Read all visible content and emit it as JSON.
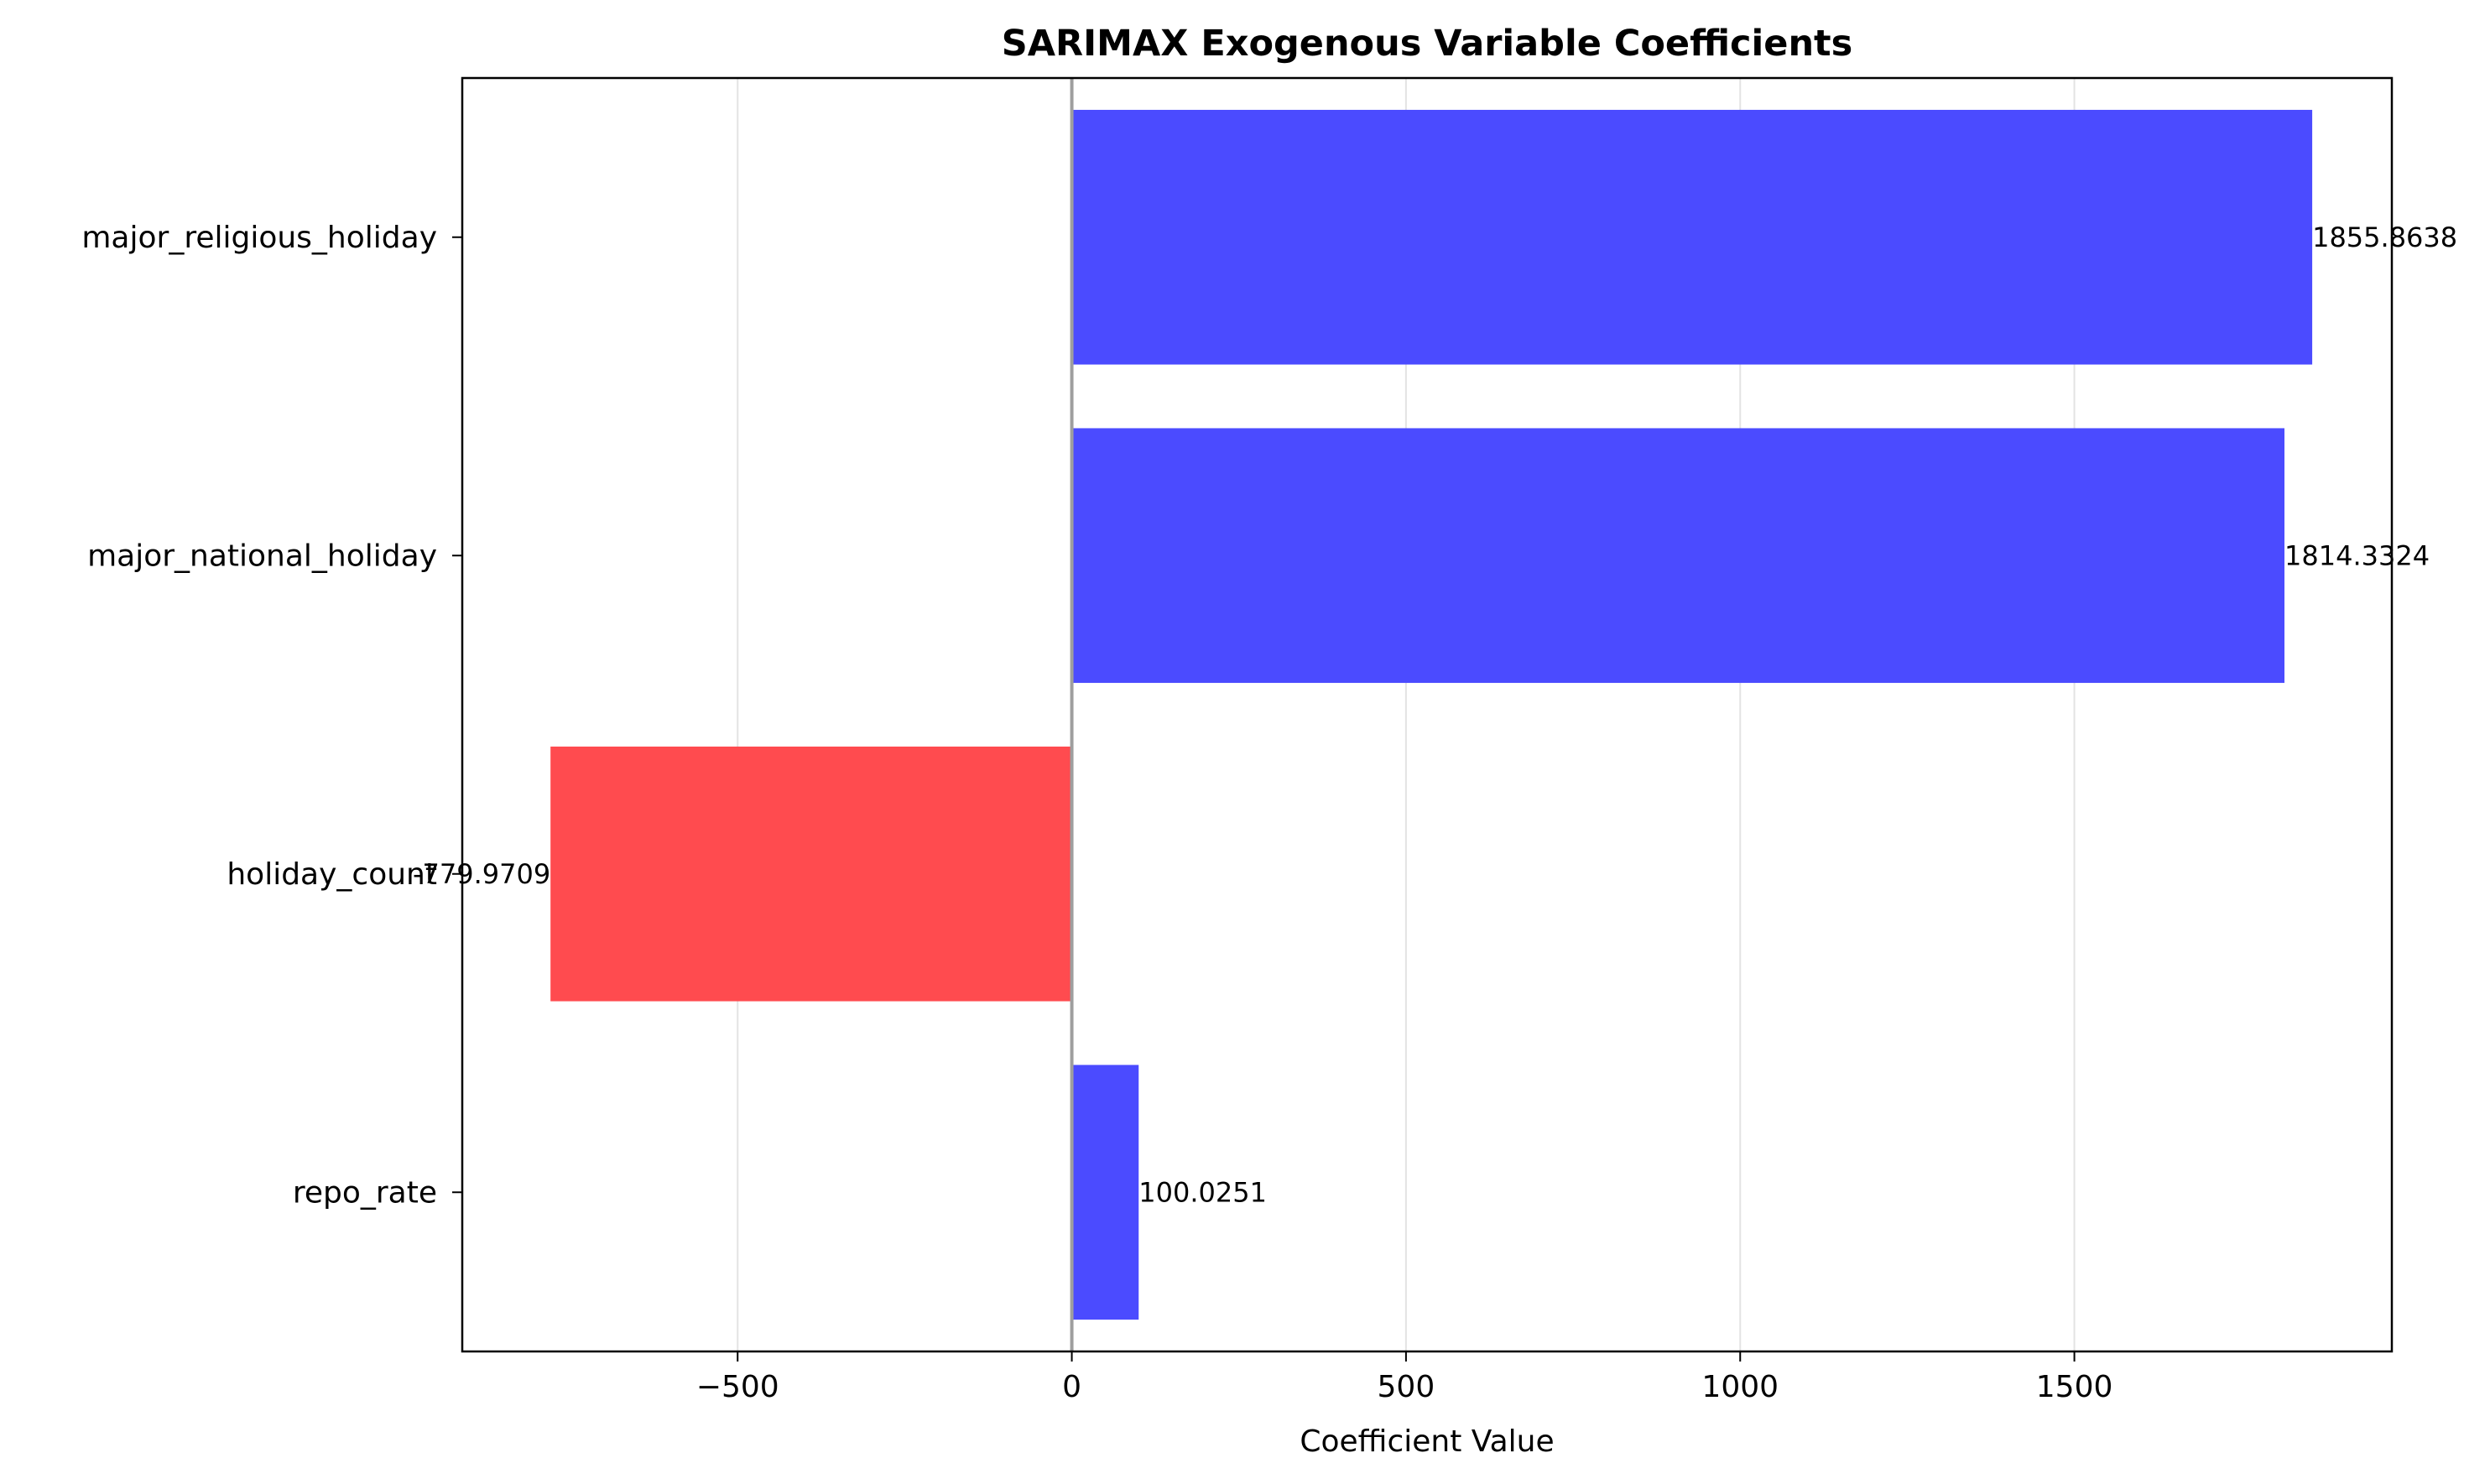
{
  "chart_data": {
    "type": "bar",
    "orientation": "horizontal",
    "title": "SARIMAX Exogenous Variable Coefficients",
    "xlabel": "Coefficient Value",
    "ylabel": "",
    "categories": [
      "major_religious_holiday",
      "major_national_holiday",
      "holiday_count",
      "repo_rate"
    ],
    "values": [
      1855.8638,
      1814.3324,
      -779.9709,
      100.0251
    ],
    "value_labels": [
      "1855.8638",
      "1814.3324",
      "-779.9709",
      "100.0251"
    ],
    "xlim": [
      -912,
      1975
    ],
    "xticks": [
      -500,
      0,
      500,
      1000,
      1500
    ],
    "xtick_labels": [
      "−500",
      "0",
      "500",
      "1000",
      "1500"
    ],
    "grid": "x",
    "zero_line": true,
    "colors": {
      "positive": "#4b4bff",
      "negative": "#ff4b4f",
      "zero_line": "#9e9e9e",
      "grid": "#e3e3e3",
      "axes": "#000000"
    }
  }
}
